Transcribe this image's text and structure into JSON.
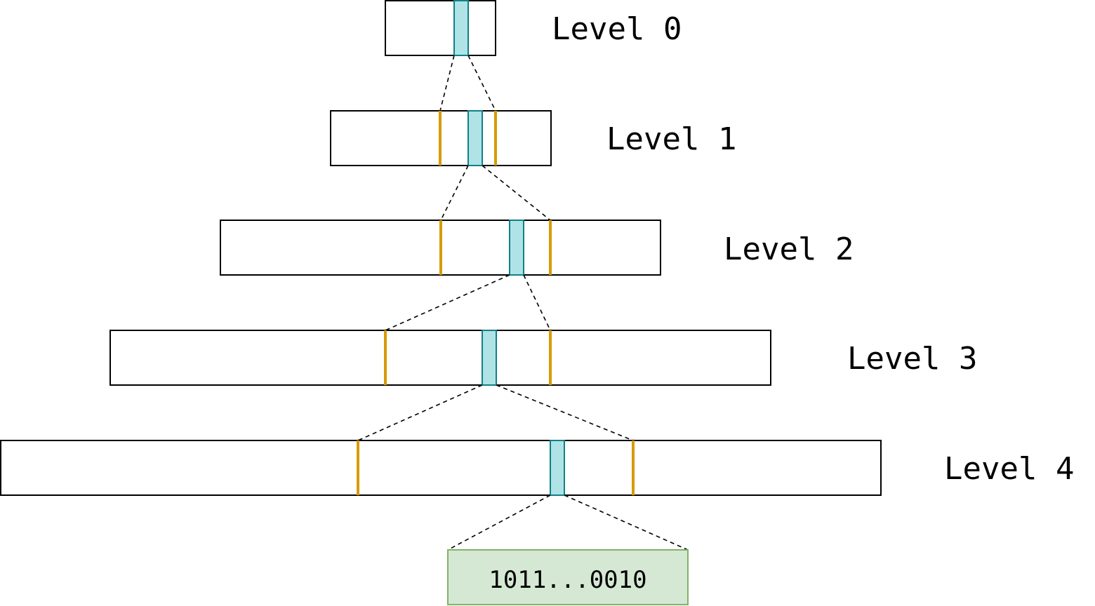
{
  "levels": [
    {
      "label": "Level 0"
    },
    {
      "label": "Level 1"
    },
    {
      "label": "Level 2"
    },
    {
      "label": "Level 3"
    },
    {
      "label": "Level 4"
    }
  ],
  "leaf": {
    "value": "1011...0010"
  },
  "colors": {
    "selected_fill": "#b0e3e6",
    "selected_stroke": "#0e8088",
    "boundary": "#d79b00",
    "leaf_fill": "#d5e8d4",
    "leaf_stroke": "#82b366"
  }
}
